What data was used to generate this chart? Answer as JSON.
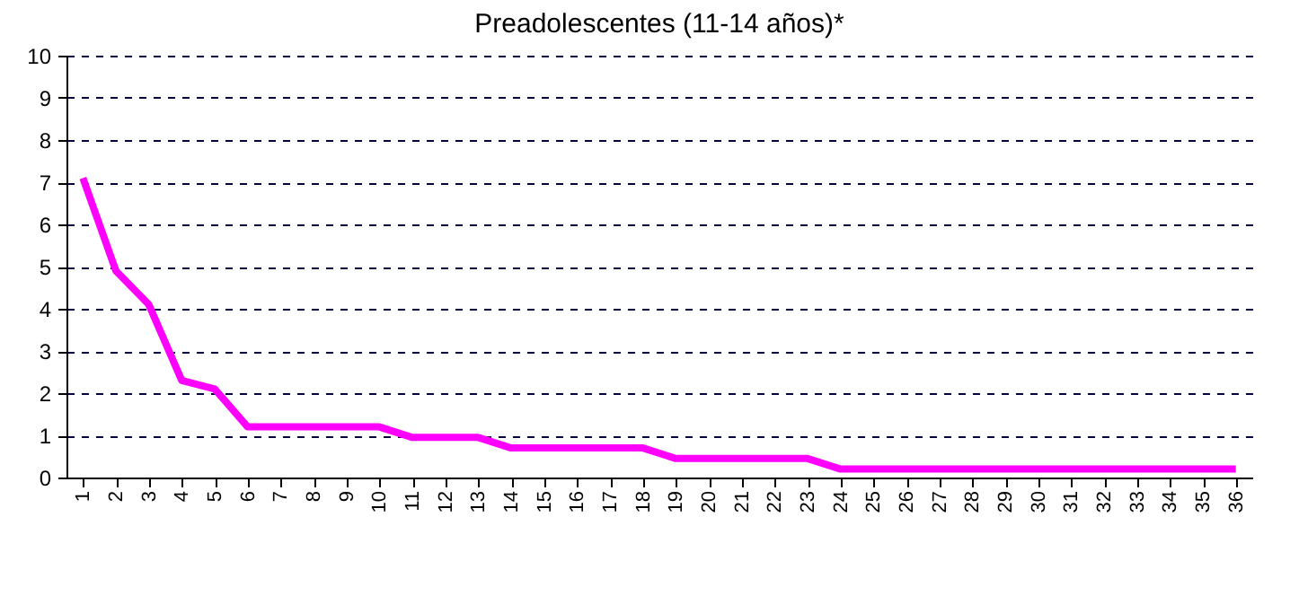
{
  "chart_data": {
    "type": "line",
    "title": "Preadolescentes (11-14 años)*",
    "categories": [
      "1",
      "2",
      "3",
      "4",
      "5",
      "6",
      "7",
      "8",
      "9",
      "10",
      "11",
      "12",
      "13",
      "14",
      "15",
      "16",
      "17",
      "18",
      "19",
      "20",
      "21",
      "22",
      "23",
      "24",
      "25",
      "26",
      "27",
      "28",
      "29",
      "30",
      "31",
      "32",
      "33",
      "34",
      "35",
      "36"
    ],
    "series": [
      {
        "color": "#ff00ff",
        "values": [
          7.1,
          4.9,
          4.1,
          2.3,
          2.1,
          1.2,
          1.2,
          1.2,
          1.2,
          1.2,
          0.95,
          0.95,
          0.95,
          0.7,
          0.7,
          0.7,
          0.7,
          0.7,
          0.45,
          0.45,
          0.45,
          0.45,
          0.45,
          0.2,
          0.2,
          0.2,
          0.2,
          0.2,
          0.2,
          0.2,
          0.2,
          0.2,
          0.2,
          0.2,
          0.2,
          0.2
        ]
      }
    ],
    "ylim": [
      0,
      10
    ],
    "yticks": [
      0,
      1,
      2,
      3,
      4,
      5,
      6,
      7,
      8,
      9,
      10
    ],
    "grid": "y",
    "marker": "none",
    "line_style": "solid"
  }
}
